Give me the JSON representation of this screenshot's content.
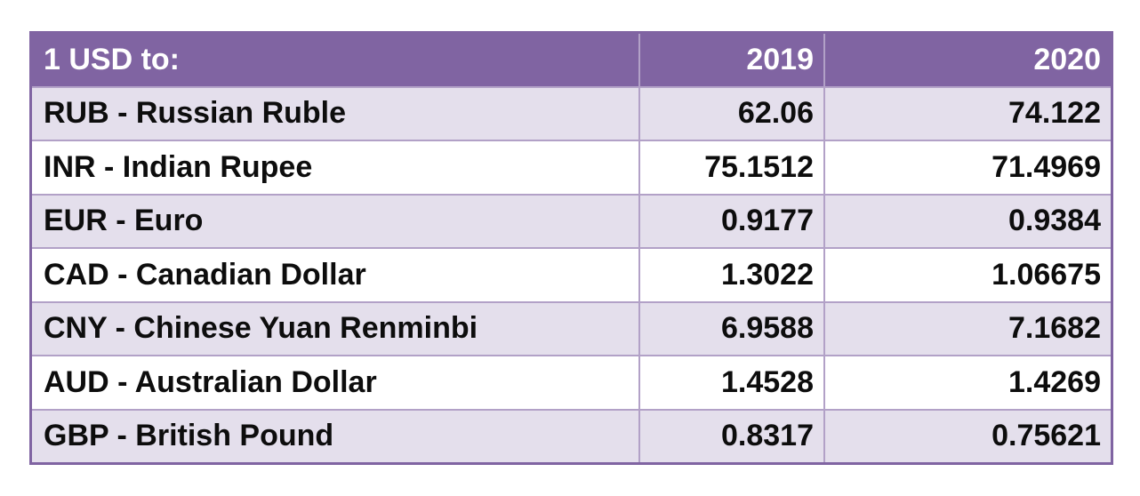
{
  "table": {
    "header": {
      "label": "1 USD to:",
      "year1": "2019",
      "year2": "2020"
    },
    "rows": [
      {
        "currency": "RUB - Russian Ruble",
        "y2019": "62.06",
        "y2020": "74.122"
      },
      {
        "currency": "INR - Indian Rupee",
        "y2019": "75.1512",
        "y2020": "71.4969"
      },
      {
        "currency": "EUR - Euro",
        "y2019": "0.9177",
        "y2020": "0.9384"
      },
      {
        "currency": "CAD - Canadian Dollar",
        "y2019": "1.3022",
        "y2020": "1.06675"
      },
      {
        "currency": "CNY - Chinese Yuan Renminbi",
        "y2019": "6.9588",
        "y2020": "7.1682"
      },
      {
        "currency": "AUD - Australian Dollar",
        "y2019": "1.4528",
        "y2020": "1.4269"
      },
      {
        "currency": "GBP - British Pound",
        "y2019": "0.8317",
        "y2020": "0.75621"
      }
    ],
    "colors": {
      "header_bg": "#8064A2",
      "header_text": "#FFFFFF",
      "band_odd_bg": "#E4DFEC",
      "band_even_bg": "#FFFFFF",
      "gridline": "#B2A1C7",
      "outer_border": "#8064A2",
      "body_text": "#0D0D0D"
    }
  },
  "chart_data": {
    "type": "table",
    "title": "1 USD to:",
    "columns": [
      "1 USD to:",
      "2019",
      "2020"
    ],
    "categories": [
      "RUB - Russian Ruble",
      "INR - Indian Rupee",
      "EUR - Euro",
      "CAD - Canadian Dollar",
      "CNY - Chinese Yuan Renminbi",
      "AUD - Australian Dollar",
      "GBP - British Pound"
    ],
    "series": [
      {
        "name": "2019",
        "values": [
          62.06,
          75.1512,
          0.9177,
          1.3022,
          6.9588,
          1.4528,
          0.8317
        ]
      },
      {
        "name": "2020",
        "values": [
          74.122,
          71.4969,
          0.9384,
          1.06675,
          7.1682,
          1.4269,
          0.75621
        ]
      }
    ]
  }
}
